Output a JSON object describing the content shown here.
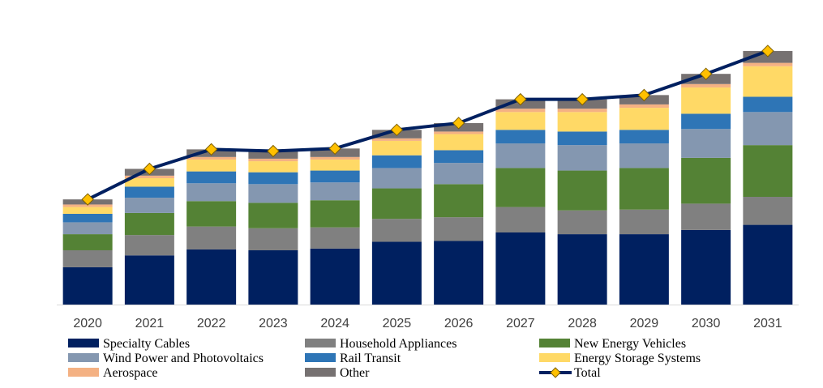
{
  "chart_data": {
    "type": "bar",
    "stacked": true,
    "title": "",
    "xlabel": "",
    "ylabel": "",
    "y_axis_visible": false,
    "grid": false,
    "legend_position": "bottom",
    "categories": [
      "2020",
      "2021",
      "2022",
      "2023",
      "2024",
      "2025",
      "2026",
      "2027",
      "2028",
      "2029",
      "2030",
      "2031"
    ],
    "series": [
      {
        "name": "Specialty Cables",
        "color": "#002060",
        "values": [
          44,
          58,
          65,
          64,
          66,
          74,
          75,
          85,
          83,
          83,
          88,
          94
        ]
      },
      {
        "name": "Household Appliances",
        "color": "#808080",
        "values": [
          20,
          24,
          27,
          26,
          25,
          27,
          28,
          30,
          28,
          29,
          31,
          33
        ]
      },
      {
        "name": "New Energy Vehicles",
        "color": "#548235",
        "values": [
          19,
          26,
          30,
          30,
          32,
          36,
          39,
          46,
          47,
          49,
          54,
          61
        ]
      },
      {
        "name": "Wind Power and Photovoltaics",
        "color": "#8497B0",
        "values": [
          14,
          18,
          21,
          22,
          21,
          24,
          25,
          29,
          30,
          29,
          34,
          39
        ]
      },
      {
        "name": "Rail Transit",
        "color": "#2E75B6",
        "values": [
          10,
          13,
          14,
          14,
          14,
          15,
          15,
          16,
          16,
          16,
          18,
          18
        ]
      },
      {
        "name": "Energy Storage Systems",
        "color": "#FFD966",
        "values": [
          8,
          10,
          14,
          13,
          13,
          17,
          19,
          21,
          23,
          26,
          31,
          36
        ]
      },
      {
        "name": "Aerospace",
        "color": "#F4B183",
        "values": [
          3,
          3,
          3,
          3,
          3,
          3,
          3,
          4,
          4,
          4,
          4,
          4
        ]
      },
      {
        "name": "Other",
        "color": "#767171",
        "values": [
          6,
          8,
          9,
          9,
          10,
          10,
          10,
          11,
          11,
          11,
          12,
          14
        ]
      }
    ],
    "line": {
      "name": "Total",
      "color": "#002060",
      "marker_color": "#FFC000",
      "values": [
        124,
        160,
        183,
        181,
        184,
        206,
        214,
        242,
        242,
        247,
        272,
        299
      ]
    },
    "ylim": [
      0,
      340
    ]
  }
}
